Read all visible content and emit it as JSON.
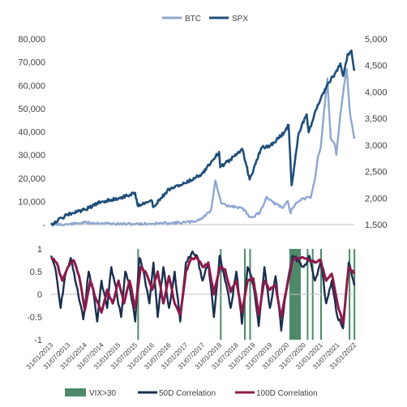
{
  "colors": {
    "btc": "#8ea6d1",
    "spx": "#1f4e79",
    "vix": "#4e8a6a",
    "corr50": "#1a2e4f",
    "corr100": "#8b1a4a",
    "axis": "#bfbfbf",
    "text": "#404040"
  },
  "chart_data": [
    {
      "type": "line",
      "legend_position": "top",
      "series": [
        {
          "name": "BTC",
          "axis": "left",
          "x": [
            "2013-01-31",
            "2013-07-31",
            "2014-01-31",
            "2014-07-31",
            "2015-01-31",
            "2015-07-31",
            "2016-01-31",
            "2016-07-31",
            "2017-01-31",
            "2017-04-30",
            "2017-07-31",
            "2017-10-31",
            "2017-12-17",
            "2018-02-15",
            "2018-04-15",
            "2018-07-31",
            "2018-11-01",
            "2018-12-15",
            "2019-02-01",
            "2019-04-15",
            "2019-06-26",
            "2019-09-01",
            "2019-12-15",
            "2020-02-10",
            "2020-03-12",
            "2020-03-20",
            "2020-05-15",
            "2020-07-31",
            "2020-10-15",
            "2020-11-30",
            "2020-12-31",
            "2021-01-31",
            "2021-02-28",
            "2021-04-14",
            "2021-05-20",
            "2021-06-30",
            "2021-07-20",
            "2021-08-31",
            "2021-10-20",
            "2021-11-10",
            "2021-12-15",
            "2022-01-31"
          ],
          "values": [
            20,
            90,
            850,
            620,
            230,
            280,
            370,
            650,
            970,
            1300,
            2800,
            6300,
            19000,
            9500,
            8000,
            7700,
            6300,
            3400,
            3500,
            5200,
            12000,
            9600,
            7100,
            10200,
            4900,
            6500,
            9500,
            11300,
            11500,
            19500,
            29000,
            33000,
            45000,
            63000,
            37000,
            35000,
            30000,
            47000,
            62000,
            67000,
            48000,
            37000
          ]
        },
        {
          "name": "SPX",
          "axis": "right",
          "x": [
            "2013-01-31",
            "2013-07-31",
            "2014-01-31",
            "2014-07-31",
            "2015-01-31",
            "2015-07-31",
            "2015-08-25",
            "2016-01-31",
            "2016-02-11",
            "2016-07-31",
            "2017-01-31",
            "2017-07-31",
            "2018-01-26",
            "2018-02-08",
            "2018-07-31",
            "2018-10-03",
            "2018-12-24",
            "2019-04-30",
            "2019-07-31",
            "2019-12-31",
            "2020-02-19",
            "2020-03-23",
            "2020-06-08",
            "2020-09-02",
            "2020-09-23",
            "2020-12-31",
            "2021-04-30",
            "2021-07-31",
            "2021-09-02",
            "2021-10-04",
            "2021-11-18",
            "2021-12-31",
            "2022-01-31"
          ],
          "values": [
            1500,
            1690,
            1780,
            1930,
            1995,
            2100,
            1870,
            1940,
            1830,
            2170,
            2280,
            2470,
            2870,
            2580,
            2810,
            2930,
            2350,
            2950,
            2980,
            3230,
            3380,
            2240,
            3230,
            3580,
            3240,
            3760,
            4180,
            4400,
            4540,
            4300,
            4700,
            4780,
            4400
          ]
        }
      ],
      "axes": {
        "left": {
          "ticks": [
            0,
            10000,
            20000,
            30000,
            40000,
            50000,
            60000,
            70000,
            80000
          ],
          "tick_labels": [
            "-",
            "10,000",
            "20,000",
            "30,000",
            "40,000",
            "50,000",
            "60,000",
            "70,000",
            "80,000"
          ],
          "ylim": [
            0,
            80000
          ]
        },
        "right": {
          "ticks": [
            1500,
            2000,
            2500,
            3000,
            3500,
            4000,
            4500,
            5000
          ],
          "tick_labels": [
            "1,500",
            "2,000",
            "2,500",
            "3,000",
            "3,500",
            "4,000",
            "4,500",
            "5,000"
          ],
          "ylim": [
            1500,
            5000
          ]
        }
      },
      "xlim": [
        "2013-01-31",
        "2022-01-31"
      ],
      "grid": false
    },
    {
      "type": "line",
      "legend_position": "bottom",
      "ylim": [
        -1,
        1
      ],
      "yticks": [
        -1,
        -0.5,
        0,
        0.5,
        1
      ],
      "ytick_labels": [
        "-1",
        "-0.5",
        "0",
        "0.5",
        "1"
      ],
      "xtick_labels": [
        "31/01/2013",
        "31/07/2013",
        "31/01/2014",
        "31/07/2014",
        "31/01/2015",
        "31/07/2015",
        "31/01/2016",
        "31/07/2016",
        "31/01/2017",
        "31/07/2017",
        "31/01/2018",
        "31/07/2018",
        "31/01/2019",
        "31/07/2019",
        "31/01/2020",
        "31/07/2020",
        "31/01/2021",
        "31/07/2021",
        "31/01/2022"
      ],
      "vix_periods": {
        "name": "VIX>30",
        "ranges": [
          [
            "2015-08-24",
            "2015-08-31"
          ],
          [
            "2018-02-05",
            "2018-02-12"
          ],
          [
            "2018-10-24",
            "2018-10-30"
          ],
          [
            "2018-12-20",
            "2018-12-27"
          ],
          [
            "2020-02-27",
            "2020-06-30"
          ],
          [
            "2020-09-03",
            "2020-09-10"
          ],
          [
            "2020-10-28",
            "2020-11-03"
          ],
          [
            "2021-01-27",
            "2021-02-01"
          ],
          [
            "2021-12-01",
            "2021-12-06"
          ],
          [
            "2022-01-24",
            "2022-01-31"
          ]
        ]
      },
      "series": [
        {
          "name": "50D Correlation",
          "x": [
            "2013-01-31",
            "2013-03-15",
            "2013-05-15",
            "2013-07-01",
            "2013-09-01",
            "2013-11-01",
            "2014-01-15",
            "2014-03-15",
            "2014-05-01",
            "2014-06-15",
            "2014-08-01",
            "2014-10-01",
            "2014-11-15",
            "2015-01-15",
            "2015-03-01",
            "2015-04-15",
            "2015-06-01",
            "2015-08-01",
            "2015-09-15",
            "2015-11-01",
            "2016-01-01",
            "2016-02-15",
            "2016-04-01",
            "2016-06-01",
            "2016-08-01",
            "2016-10-01",
            "2016-12-01",
            "2017-02-01",
            "2017-04-01",
            "2017-06-01",
            "2017-08-01",
            "2017-10-01",
            "2017-12-01",
            "2018-02-01",
            "2018-04-01",
            "2018-06-01",
            "2018-08-01",
            "2018-10-01",
            "2018-12-01",
            "2019-02-01",
            "2019-04-01",
            "2019-06-01",
            "2019-08-01",
            "2019-10-01",
            "2019-12-01",
            "2020-02-01",
            "2020-04-01",
            "2020-06-01",
            "2020-08-01",
            "2020-10-01",
            "2020-12-01",
            "2021-02-01",
            "2021-04-01",
            "2021-06-01",
            "2021-08-01",
            "2021-10-01",
            "2021-12-01",
            "2022-01-31"
          ],
          "values": [
            0.85,
            0.6,
            -0.3,
            0.4,
            0.8,
            0.2,
            -0.55,
            0.5,
            0.1,
            -0.6,
            0.3,
            -0.3,
            0.6,
            0.0,
            -0.5,
            0.5,
            0.2,
            -0.6,
            0.8,
            0.5,
            -0.2,
            0.7,
            -0.5,
            0.6,
            -0.3,
            0.5,
            -0.6,
            0.7,
            0.9,
            0.85,
            0.3,
            0.7,
            -0.5,
            0.85,
            0.3,
            -0.3,
            0.5,
            -0.65,
            0.6,
            0.2,
            -0.7,
            0.6,
            -0.3,
            0.4,
            -0.8,
            0.2,
            0.85,
            0.75,
            0.6,
            0.85,
            0.3,
            0.75,
            -0.2,
            0.3,
            -0.5,
            -0.75,
            0.7,
            0.2
          ]
        },
        {
          "name": "100D Correlation",
          "x": [
            "2013-01-31",
            "2013-04-01",
            "2013-06-01",
            "2013-08-01",
            "2013-10-01",
            "2013-12-01",
            "2014-02-01",
            "2014-04-01",
            "2014-06-01",
            "2014-08-01",
            "2014-10-01",
            "2014-12-01",
            "2015-02-01",
            "2015-04-01",
            "2015-06-01",
            "2015-08-01",
            "2015-10-01",
            "2015-12-01",
            "2016-02-01",
            "2016-04-01",
            "2016-06-01",
            "2016-08-01",
            "2016-10-01",
            "2016-12-01",
            "2017-02-01",
            "2017-04-01",
            "2017-06-01",
            "2017-08-01",
            "2017-10-01",
            "2017-12-01",
            "2018-02-01",
            "2018-04-01",
            "2018-06-01",
            "2018-08-01",
            "2018-10-01",
            "2018-12-01",
            "2019-02-01",
            "2019-04-01",
            "2019-06-01",
            "2019-08-01",
            "2019-10-01",
            "2019-12-01",
            "2020-02-01",
            "2020-04-01",
            "2020-06-01",
            "2020-08-01",
            "2020-10-01",
            "2020-12-01",
            "2021-02-01",
            "2021-04-01",
            "2021-06-01",
            "2021-08-01",
            "2021-10-01",
            "2021-12-01",
            "2022-01-31"
          ],
          "values": [
            0.8,
            0.7,
            0.3,
            0.6,
            0.75,
            0.4,
            -0.35,
            0.3,
            -0.1,
            -0.4,
            0.1,
            -0.2,
            0.3,
            -0.2,
            0.3,
            -0.3,
            0.6,
            0.45,
            0.1,
            0.5,
            -0.2,
            0.4,
            -0.2,
            -0.45,
            0.5,
            0.8,
            0.8,
            0.6,
            0.7,
            0.0,
            0.6,
            0.55,
            0.05,
            0.3,
            -0.4,
            0.3,
            0.35,
            -0.45,
            0.3,
            0.1,
            0.2,
            -0.5,
            0.15,
            0.75,
            0.8,
            0.8,
            0.75,
            0.7,
            0.75,
            0.3,
            0.45,
            -0.2,
            -0.65,
            0.6,
            0.45
          ]
        }
      ]
    }
  ]
}
